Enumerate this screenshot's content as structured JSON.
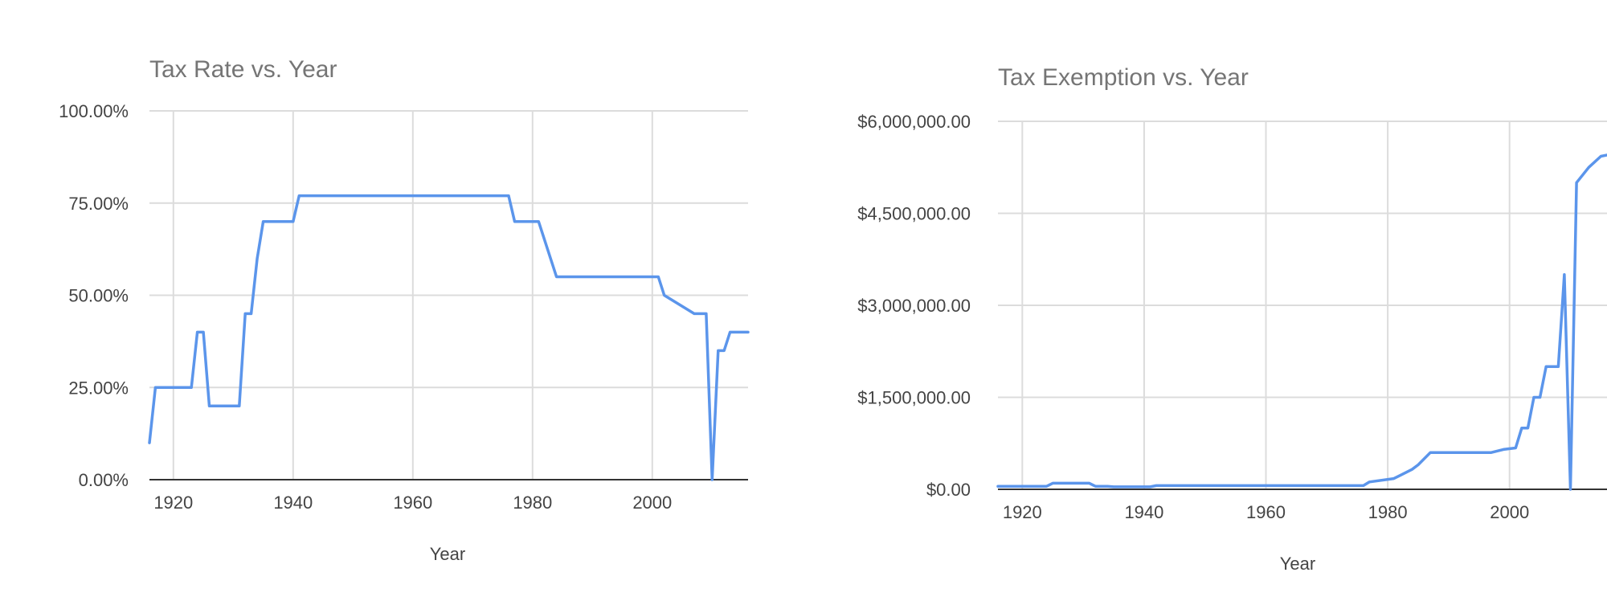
{
  "chart_data": [
    {
      "type": "line",
      "title": "Tax Rate vs. Year",
      "xlabel": "Year",
      "ylabel": "",
      "xlim": [
        1916,
        2016
      ],
      "ylim": [
        0,
        1
      ],
      "x_ticks": [
        {
          "v": 1920,
          "label": "1920"
        },
        {
          "v": 1940,
          "label": "1940"
        },
        {
          "v": 1960,
          "label": "1960"
        },
        {
          "v": 1980,
          "label": "1980"
        },
        {
          "v": 2000,
          "label": "2000"
        }
      ],
      "y_ticks": [
        {
          "v": 0,
          "label": "0.00%"
        },
        {
          "v": 0.25,
          "label": "25.00%"
        },
        {
          "v": 0.5,
          "label": "50.00%"
        },
        {
          "v": 0.75,
          "label": "75.00%"
        },
        {
          "v": 1,
          "label": "100.00%"
        }
      ],
      "grid": true,
      "color": "#5b95eb",
      "series": [
        {
          "x": [
            1916,
            1917,
            1918,
            1923,
            1924,
            1925,
            1926,
            1927,
            1931,
            1932,
            1933,
            1934,
            1935,
            1940,
            1941,
            1976,
            1977,
            1981,
            1984,
            2001,
            2002,
            2007,
            2009,
            2010,
            2011,
            2012,
            2013,
            2016
          ],
          "y": [
            0.1,
            0.25,
            0.25,
            0.25,
            0.4,
            0.4,
            0.2,
            0.2,
            0.2,
            0.45,
            0.45,
            0.6,
            0.7,
            0.7,
            0.77,
            0.77,
            0.7,
            0.7,
            0.55,
            0.55,
            0.5,
            0.45,
            0.45,
            0.0,
            0.35,
            0.35,
            0.4,
            0.4
          ]
        }
      ]
    },
    {
      "type": "line",
      "title": "Tax Exemption vs. Year",
      "xlabel": "Year",
      "ylabel": "",
      "xlim": [
        1916,
        2016
      ],
      "ylim": [
        0,
        6000000
      ],
      "x_ticks": [
        {
          "v": 1920,
          "label": "1920"
        },
        {
          "v": 1940,
          "label": "1940"
        },
        {
          "v": 1960,
          "label": "1960"
        },
        {
          "v": 1980,
          "label": "1980"
        },
        {
          "v": 2000,
          "label": "2000"
        }
      ],
      "y_ticks": [
        {
          "v": 0,
          "label": "$0.00"
        },
        {
          "v": 1500000,
          "label": "$1,500,000.00"
        },
        {
          "v": 3000000,
          "label": "$3,000,000.00"
        },
        {
          "v": 4500000,
          "label": "$4,500,000.00"
        },
        {
          "v": 6000000,
          "label": "$6,000,000.00"
        }
      ],
      "grid": true,
      "color": "#5b95eb",
      "series": [
        {
          "x": [
            1916,
            1924,
            1925,
            1931,
            1932,
            1934,
            1935,
            1941,
            1942,
            1976,
            1977,
            1981,
            1982,
            1984,
            1985,
            1987,
            1997,
            1999,
            2001,
            2002,
            2003,
            2004,
            2005,
            2006,
            2008,
            2009,
            2010,
            2011,
            2013,
            2015,
            2016
          ],
          "y": [
            50000,
            50000,
            100000,
            100000,
            50000,
            50000,
            40000,
            40000,
            60000,
            60000,
            120000,
            175000,
            225000,
            325000,
            400000,
            600000,
            600000,
            650000,
            675000,
            1000000,
            1000000,
            1500000,
            1500000,
            2000000,
            2000000,
            3500000,
            0,
            5000000,
            5250000,
            5430000,
            5450000
          ]
        }
      ]
    }
  ]
}
